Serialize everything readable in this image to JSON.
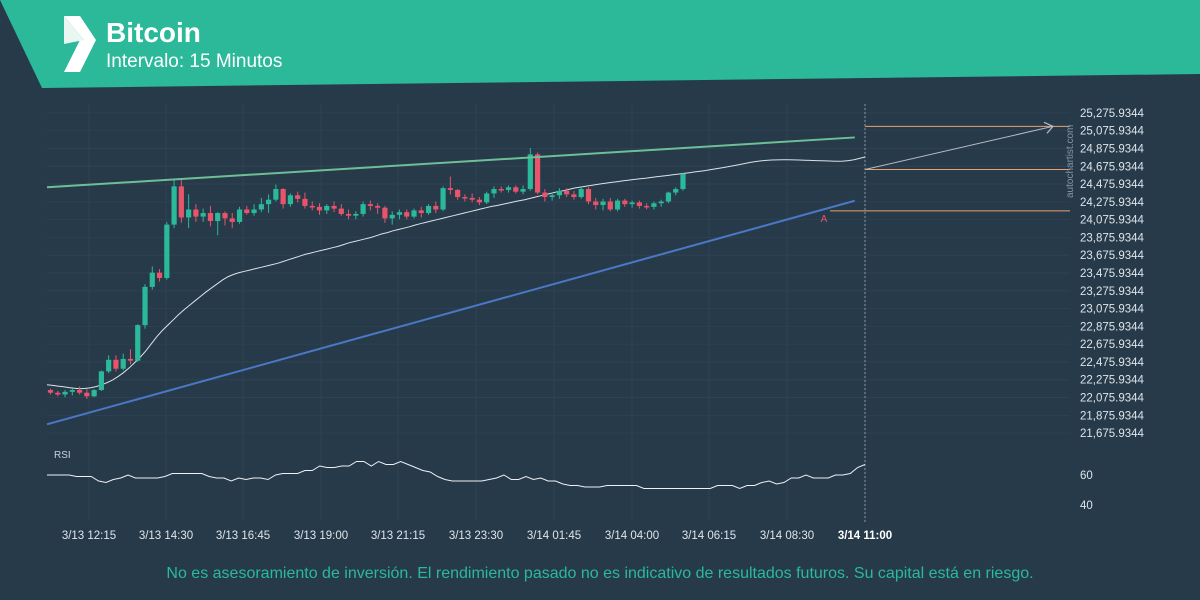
{
  "header": {
    "title": "Bitcoin",
    "subtitle": "Intervalo: 15 Minutos",
    "logo_icon": "autochartist-logo-icon",
    "accent_color": "#2bb99a"
  },
  "watermark": "autochartist.com",
  "disclaimer": "No es asesoramiento de inversión. El rendimiento pasado no es indicativo de resultados futuros. Su capital está en riesgo.",
  "chart_data": {
    "type": "candlestick",
    "colors": {
      "up": "#2bb99a",
      "down": "#e8546a",
      "moving_average": "#dde3e8",
      "support_line": "#4a78c4",
      "resistance_line": "#6dbf98",
      "level_lines": "#e8a070",
      "projection": "#b7bcc4",
      "rsi": "#eef1f4"
    },
    "y_axis": {
      "ylim": [
        21575.9344,
        25375.9344
      ],
      "ticks": [
        "25,275.9344",
        "25,075.9344",
        "24,875.9344",
        "24,675.9344",
        "24,475.9344",
        "24,275.9344",
        "24,075.9344",
        "23,875.9344",
        "23,675.9344",
        "23,475.9344",
        "23,275.9344",
        "23,075.9344",
        "22,875.9344",
        "22,675.9344",
        "22,475.9344",
        "22,275.9344",
        "22,075.9344",
        "21,875.9344",
        "21,675.9344"
      ]
    },
    "x_axis": {
      "ticks": [
        "3/13 12:15",
        "3/13 14:30",
        "3/13 16:45",
        "3/13 19:00",
        "3/13 21:15",
        "3/13 23:30",
        "3/14 01:45",
        "3/14 04:00",
        "3/14 06:15",
        "3/14 08:30",
        "3/14 11:00"
      ]
    },
    "candles": [
      [
        22160,
        22175,
        22110,
        22130
      ],
      [
        22130,
        22150,
        22090,
        22110
      ],
      [
        22110,
        22160,
        22080,
        22140
      ],
      [
        22140,
        22180,
        22100,
        22160
      ],
      [
        22160,
        22200,
        22110,
        22130
      ],
      [
        22130,
        22170,
        22060,
        22090
      ],
      [
        22090,
        22170,
        22080,
        22160
      ],
      [
        22160,
        22380,
        22150,
        22370
      ],
      [
        22370,
        22550,
        22350,
        22500
      ],
      [
        22500,
        22550,
        22370,
        22400
      ],
      [
        22400,
        22570,
        22380,
        22510
      ],
      [
        22510,
        22620,
        22450,
        22490
      ],
      [
        22490,
        22900,
        22480,
        22890
      ],
      [
        22890,
        23350,
        22850,
        23320
      ],
      [
        23320,
        23550,
        23290,
        23480
      ],
      [
        23480,
        23520,
        23380,
        23420
      ],
      [
        23420,
        24050,
        23400,
        24020
      ],
      [
        24020,
        24530,
        23980,
        24450
      ],
      [
        24450,
        24540,
        24040,
        24100
      ],
      [
        24100,
        24360,
        23980,
        24190
      ],
      [
        24190,
        24250,
        24050,
        24110
      ],
      [
        24110,
        24200,
        24050,
        24150
      ],
      [
        24150,
        24230,
        24000,
        24060
      ],
      [
        24060,
        24160,
        23900,
        24150
      ],
      [
        24150,
        24170,
        24010,
        24090
      ],
      [
        24090,
        24150,
        23980,
        24050
      ],
      [
        24050,
        24220,
        24030,
        24190
      ],
      [
        24190,
        24230,
        24130,
        24150
      ],
      [
        24150,
        24250,
        24120,
        24190
      ],
      [
        24190,
        24320,
        24160,
        24250
      ],
      [
        24250,
        24360,
        24150,
        24300
      ],
      [
        24300,
        24470,
        24280,
        24420
      ],
      [
        24420,
        24430,
        24200,
        24250
      ],
      [
        24250,
        24370,
        24220,
        24350
      ],
      [
        24350,
        24390,
        24270,
        24310
      ],
      [
        24310,
        24380,
        24200,
        24230
      ],
      [
        24230,
        24280,
        24180,
        24220
      ],
      [
        24220,
        24260,
        24130,
        24180
      ],
      [
        24180,
        24250,
        24140,
        24230
      ],
      [
        24230,
        24280,
        24160,
        24200
      ],
      [
        24200,
        24250,
        24120,
        24140
      ],
      [
        24140,
        24190,
        24080,
        24120
      ],
      [
        24120,
        24170,
        24080,
        24140
      ],
      [
        24140,
        24280,
        24110,
        24250
      ],
      [
        24250,
        24290,
        24180,
        24230
      ],
      [
        24230,
        24260,
        24140,
        24210
      ],
      [
        24210,
        24230,
        24040,
        24090
      ],
      [
        24090,
        24170,
        24020,
        24130
      ],
      [
        24130,
        24190,
        24080,
        24160
      ],
      [
        24160,
        24190,
        24080,
        24110
      ],
      [
        24110,
        24200,
        24090,
        24180
      ],
      [
        24180,
        24220,
        24100,
        24150
      ],
      [
        24150,
        24250,
        24130,
        24230
      ],
      [
        24230,
        24280,
        24150,
        24190
      ],
      [
        24190,
        24450,
        24170,
        24430
      ],
      [
        24430,
        24560,
        24360,
        24410
      ],
      [
        24410,
        24420,
        24300,
        24330
      ],
      [
        24330,
        24360,
        24280,
        24320
      ],
      [
        24320,
        24370,
        24270,
        24300
      ],
      [
        24300,
        24330,
        24240,
        24270
      ],
      [
        24270,
        24390,
        24250,
        24370
      ],
      [
        24370,
        24450,
        24320,
        24420
      ],
      [
        24420,
        24450,
        24380,
        24410
      ],
      [
        24410,
        24460,
        24380,
        24440
      ],
      [
        24440,
        24460,
        24370,
        24390
      ],
      [
        24390,
        24460,
        24360,
        24420
      ],
      [
        24420,
        24880,
        24400,
        24810
      ],
      [
        24810,
        24830,
        24360,
        24380
      ],
      [
        24380,
        24420,
        24280,
        24330
      ],
      [
        24330,
        24380,
        24290,
        24350
      ],
      [
        24350,
        24430,
        24310,
        24400
      ],
      [
        24400,
        24430,
        24330,
        24360
      ],
      [
        24360,
        24400,
        24300,
        24330
      ],
      [
        24330,
        24440,
        24310,
        24420
      ],
      [
        24420,
        24440,
        24250,
        24280
      ],
      [
        24280,
        24320,
        24190,
        24240
      ],
      [
        24240,
        24310,
        24180,
        24280
      ],
      [
        24280,
        24320,
        24170,
        24190
      ],
      [
        24190,
        24310,
        24170,
        24290
      ],
      [
        24290,
        24310,
        24220,
        24250
      ],
      [
        24250,
        24290,
        24210,
        24270
      ],
      [
        24270,
        24290,
        24200,
        24230
      ],
      [
        24230,
        24260,
        24190,
        24220
      ],
      [
        24220,
        24280,
        24190,
        24260
      ],
      [
        24260,
        24300,
        24220,
        24280
      ],
      [
        24280,
        24390,
        24260,
        24380
      ],
      [
        24380,
        24440,
        24350,
        24420
      ],
      [
        24420,
        24600,
        24400,
        24590
      ]
    ],
    "moving_average": [
      22220,
      22212,
      22204,
      22196,
      22188,
      22180,
      22175,
      22178,
      22186,
      22200,
      22220,
      22245,
      22275,
      22315,
      22360,
      22410,
      22470,
      22530,
      22600,
      22680,
      22760,
      22830,
      22890,
      22950,
      23010,
      23065,
      23115,
      23165,
      23215,
      23265,
      23310,
      23355,
      23400,
      23435,
      23460,
      23480,
      23495,
      23510,
      23525,
      23540,
      23555,
      23570,
      23585,
      23605,
      23625,
      23645,
      23665,
      23685,
      23700,
      23715,
      23730,
      23745,
      23760,
      23775,
      23795,
      23815,
      23830,
      23845,
      23860,
      23875,
      23895,
      23915,
      23930,
      23950,
      23965,
      23980,
      23995,
      24015,
      24030,
      24045,
      24060,
      24075,
      24090,
      24105,
      24120,
      24135,
      24150,
      24165,
      24180,
      24195,
      24210,
      24225,
      24235,
      24248,
      24262,
      24275,
      24288,
      24300,
      24315,
      24330,
      24345,
      24360,
      24375,
      24390,
      24400,
      24415,
      24430,
      24440,
      24450,
      24460,
      24470,
      24480,
      24488,
      24496,
      24504,
      24512,
      24520,
      24528,
      24536,
      24542,
      24550,
      24558,
      24565,
      24572,
      24580,
      24588,
      24596,
      24604,
      24612,
      24620,
      24628,
      24640,
      24650,
      24660,
      24670,
      24682,
      24694,
      24706,
      24718,
      24728,
      24736,
      24742,
      24746,
      24748,
      24750,
      24750,
      24748,
      24746,
      24744,
      24742,
      24740,
      24738,
      24736,
      24734,
      24732,
      24734,
      24740,
      24750,
      24764,
      24780
    ],
    "trendlines": {
      "support": {
        "from": [
          0,
          21775
        ],
        "to": [
          111,
          24288
        ]
      },
      "resistance": {
        "from": [
          0,
          24440
        ],
        "to": [
          111,
          25000
        ]
      }
    },
    "levels": [
      25125,
      24640,
      24175
    ],
    "projection": {
      "from": [
        111,
        24640
      ],
      "to": [
        118,
        25125
      ]
    },
    "pattern_label": "A",
    "rsi": {
      "label": "RSI",
      "ticks": [
        60,
        40
      ],
      "ylim": [
        30,
        80
      ],
      "values": [
        60,
        60,
        60,
        60,
        59,
        59,
        59,
        56,
        55,
        57,
        58,
        60,
        58,
        58,
        58,
        58,
        59,
        61,
        61,
        61,
        61,
        61,
        59,
        58,
        58,
        56,
        58,
        57,
        58,
        58,
        57,
        60,
        61,
        61,
        61,
        63,
        63,
        66,
        65,
        65,
        66,
        66,
        69,
        69,
        66,
        69,
        67,
        67,
        69,
        67,
        65,
        63,
        62,
        59,
        57,
        56,
        56,
        56,
        56,
        56,
        57,
        58,
        60,
        57,
        57,
        59,
        57,
        58,
        56,
        56,
        54,
        53,
        53,
        52,
        52,
        52,
        53,
        53,
        53,
        53,
        53,
        51,
        51,
        51,
        51,
        51,
        51,
        51,
        51,
        51,
        51,
        53,
        53,
        53,
        51,
        53,
        53,
        55,
        56,
        54,
        55,
        58,
        58,
        60,
        58,
        58,
        58,
        60,
        60,
        61,
        65,
        67
      ]
    }
  }
}
